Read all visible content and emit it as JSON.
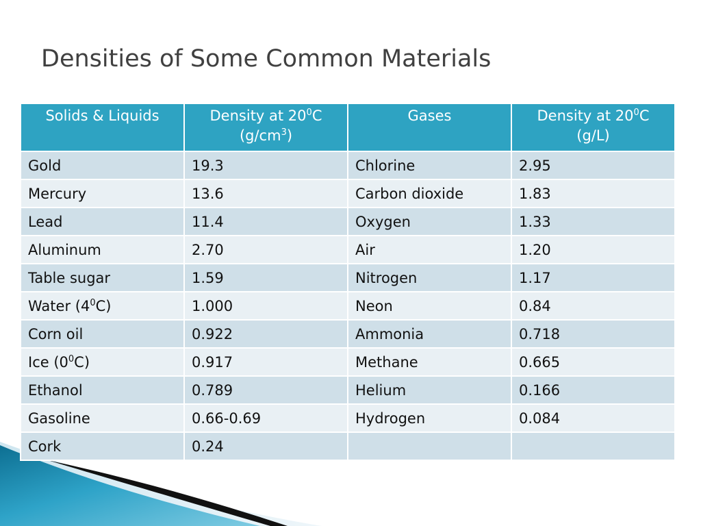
{
  "slide": {
    "title": "Densities of Some Common Materials"
  },
  "colors": {
    "header_bg": "#2ea3c2",
    "row_odd": "#cfdfe8",
    "row_even": "#e9f0f4",
    "title_text": "#404040",
    "decor_blue": "#1a8fb5",
    "decor_dark": "#1a1a1a"
  },
  "table": {
    "headers": {
      "solids": "Solids & Liquids",
      "solids_density_line1_pre": "Density at 20",
      "solids_density_line1_sup": "0",
      "solids_density_line1_post": "C",
      "solids_density_unit_pre": "(g/cm",
      "solids_density_unit_sup": "3",
      "solids_density_unit_post": ")",
      "gases": "Gases",
      "gases_density_line1_pre": "Density at 20",
      "gases_density_line1_sup": "0",
      "gases_density_line1_post": "C",
      "gases_density_unit": "(g/L)"
    },
    "rows": [
      {
        "solid": "Gold",
        "solid_density": "19.3",
        "gas": "Chlorine",
        "gas_density": "2.95"
      },
      {
        "solid": "Mercury",
        "solid_density": "13.6",
        "gas": "Carbon dioxide",
        "gas_density": "1.83"
      },
      {
        "solid": "Lead",
        "solid_density": "11.4",
        "gas": "Oxygen",
        "gas_density": "1.33"
      },
      {
        "solid": "Aluminum",
        "solid_density": "2.70",
        "gas": "Air",
        "gas_density": "1.20"
      },
      {
        "solid": "Table sugar",
        "solid_density": "1.59",
        "gas": "Nitrogen",
        "gas_density": "1.17"
      },
      {
        "solid_pre": "Water (4",
        "solid_sup": "0",
        "solid_post": "C)",
        "solid_density": "1.000",
        "gas": "Neon",
        "gas_density": "0.84"
      },
      {
        "solid": "Corn oil",
        "solid_density": "0.922",
        "gas": "Ammonia",
        "gas_density": "0.718"
      },
      {
        "solid_pre": "Ice (0",
        "solid_sup": "0",
        "solid_post": "C)",
        "solid_density": "0.917",
        "gas": "Methane",
        "gas_density": "0.665"
      },
      {
        "solid": "Ethanol",
        "solid_density": "0.789",
        "gas": "Helium",
        "gas_density": "0.166"
      },
      {
        "solid": "Gasoline",
        "solid_density": "0.66-0.69",
        "gas": "Hydrogen",
        "gas_density": "0.084"
      },
      {
        "solid": "Cork",
        "solid_density": "0.24",
        "gas": "",
        "gas_density": ""
      }
    ]
  }
}
